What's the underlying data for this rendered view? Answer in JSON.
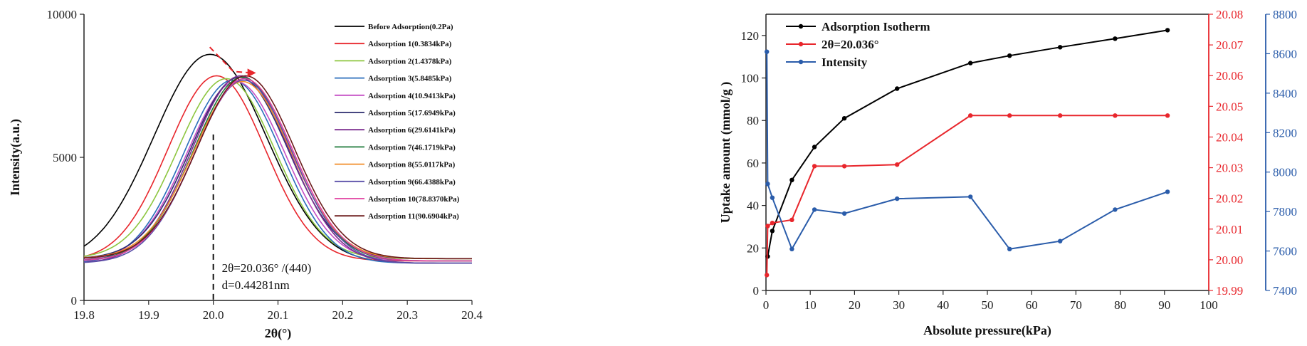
{
  "chart_data": [
    {
      "type": "line",
      "xlabel": "2θ(°)",
      "ylabel": "Intensity(a.u.)",
      "xlim": [
        19.8,
        20.4
      ],
      "ylim": [
        0,
        10000
      ],
      "xticks": [
        19.8,
        19.9,
        20.0,
        20.1,
        20.2,
        20.3,
        20.4
      ],
      "xtick_labels": [
        "19.8",
        "19.9",
        "20.0",
        "20.1",
        "20.2",
        "20.3",
        "20.4"
      ],
      "yticks": [
        0,
        5000,
        10000
      ],
      "ytick_labels": [
        "0",
        "5000",
        "10000"
      ],
      "legend_position": "top-right",
      "annotation": {
        "lines": [
          "2θ=20.036° /(440)",
          "d=0.44281nm"
        ],
        "marker_x": 20.0
      },
      "series": [
        {
          "name": "Before Adsorption(0.2Pa)",
          "color": "#000000",
          "peak": 19.995,
          "height": 8600
        },
        {
          "name": "Adsorption 1(0.3834kPa)",
          "color": "#e8262c",
          "peak": 20.005,
          "height": 7850
        },
        {
          "name": "Adsorption 2(1.4378kPa)",
          "color": "#8dc63f",
          "peak": 20.02,
          "height": 7750
        },
        {
          "name": "Adsorption 3(5.8485kPa)",
          "color": "#2a6ebb",
          "peak": 20.03,
          "height": 7700
        },
        {
          "name": "Adsorption 4(10.9413kPa)",
          "color": "#c44dc4",
          "peak": 20.035,
          "height": 7650
        },
        {
          "name": "Adsorption 5(17.6949kPa)",
          "color": "#2c2c6e",
          "peak": 20.04,
          "height": 7800
        },
        {
          "name": "Adsorption 6(29.6141kPa)",
          "color": "#7b2d8e",
          "peak": 20.042,
          "height": 7850
        },
        {
          "name": "Adsorption 7(46.1719kPa)",
          "color": "#1e7a3a",
          "peak": 20.045,
          "height": 7800
        },
        {
          "name": "Adsorption 8(55.0117kPa)",
          "color": "#f28c28",
          "peak": 20.045,
          "height": 7650
        },
        {
          "name": "Adsorption 9(66.4388kPa)",
          "color": "#5a4fa8",
          "peak": 20.047,
          "height": 7700
        },
        {
          "name": "Adsorption 10(78.8370kPa)",
          "color": "#e040a0",
          "peak": 20.048,
          "height": 7750
        },
        {
          "name": "Adsorption 11(90.6904kPa)",
          "color": "#6b1a1a",
          "peak": 20.05,
          "height": 7850
        }
      ]
    },
    {
      "type": "line",
      "xlabel": "Absolute pressure(kPa)",
      "xlim": [
        0,
        100
      ],
      "xticks": [
        0,
        10,
        20,
        30,
        40,
        50,
        60,
        70,
        80,
        90,
        100
      ],
      "xtick_labels": [
        "0",
        "10",
        "20",
        "30",
        "40",
        "50",
        "60",
        "70",
        "80",
        "90",
        "100"
      ],
      "x": [
        0.3834,
        1.4378,
        5.8485,
        10.9413,
        17.6949,
        29.6141,
        46.1719,
        55.0117,
        66.4388,
        78.837,
        90.6904
      ],
      "y_left": {
        "label": "Uptake amount (mmol/g )",
        "lim": [
          0,
          130
        ],
        "ticks": [
          0,
          20,
          40,
          60,
          80,
          100,
          120
        ],
        "tick_labels": [
          "0",
          "20",
          "40",
          "60",
          "80",
          "100",
          "120"
        ]
      },
      "y_right1": {
        "lim": [
          19.99,
          20.08
        ],
        "ticks": [
          19.99,
          20.0,
          20.01,
          20.02,
          20.03,
          20.04,
          20.05,
          20.06,
          20.07,
          20.08
        ],
        "tick_labels": [
          "19.99",
          "20.00",
          "20.01",
          "20.02",
          "20.03",
          "20.04",
          "20.05",
          "20.06",
          "20.07",
          "20.08"
        ],
        "color": "#e8262c"
      },
      "y_right2": {
        "lim": [
          7400,
          8800
        ],
        "ticks": [
          7400,
          7600,
          7800,
          8000,
          8200,
          8400,
          8600,
          8800
        ],
        "tick_labels": [
          "7400",
          "7600",
          "7800",
          "8000",
          "8200",
          "8400",
          "8600",
          "8800"
        ],
        "color": "#2a5caa"
      },
      "legend_position": "top-left",
      "series": [
        {
          "name": "Adsorption Isotherm",
          "axis": "left",
          "color": "#000000",
          "x": [
            0.3834,
            1.4378,
            5.8485,
            10.9413,
            17.6949,
            29.6141,
            46.1719,
            55.0117,
            66.4388,
            78.837,
            90.6904
          ],
          "values": [
            16,
            28,
            52,
            67.5,
            81,
            95,
            107,
            110.5,
            114.5,
            118.5,
            122.5
          ]
        },
        {
          "name": "2θ=20.036°",
          "axis": "right1",
          "color": "#e8262c",
          "x": [
            0.2,
            0.3834,
            1.4378,
            5.8485,
            10.9413,
            17.6949,
            29.6141,
            46.1719,
            55.0117,
            66.4388,
            78.837,
            90.6904
          ],
          "values": [
            19.995,
            20.011,
            20.012,
            20.013,
            20.0305,
            20.0305,
            20.031,
            20.047,
            20.047,
            20.047,
            20.047,
            20.047
          ]
        },
        {
          "name": "Intensity",
          "axis": "right2",
          "color": "#2a5caa",
          "x": [
            0.2,
            0.3834,
            1.4378,
            5.8485,
            10.9413,
            17.6949,
            29.6141,
            46.1719,
            55.0117,
            66.4388,
            78.837,
            90.6904
          ],
          "values": [
            8610,
            7940,
            7870,
            7610,
            7810,
            7790,
            7865,
            7875,
            7610,
            7650,
            7810,
            7900
          ]
        }
      ]
    }
  ]
}
